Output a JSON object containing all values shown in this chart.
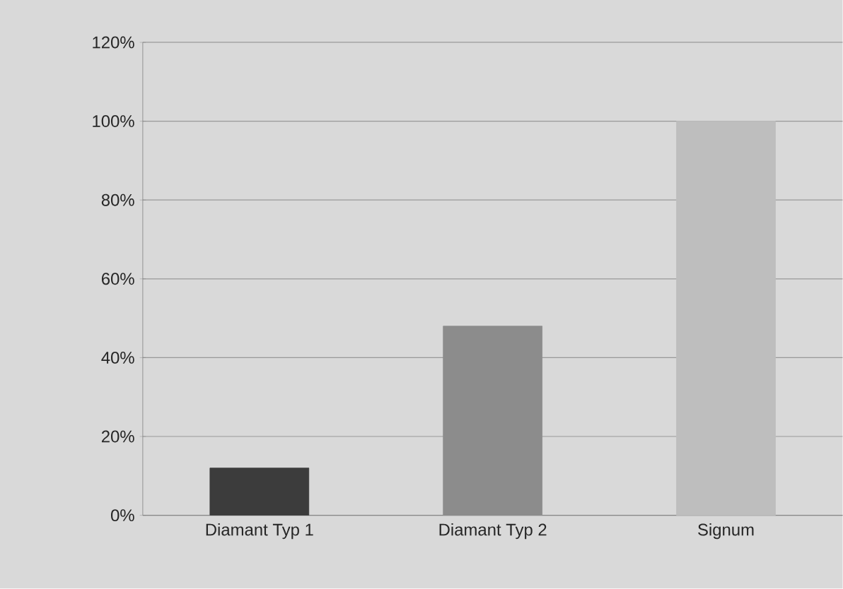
{
  "chart_data": {
    "type": "bar",
    "categories": [
      "Diamant Typ 1",
      "Diamant Typ 2",
      "Signum"
    ],
    "values": [
      12,
      48,
      100
    ],
    "colors": [
      "#3c3c3c",
      "#8c8c8c",
      "#bebebe"
    ],
    "ylim": [
      0,
      120
    ],
    "yticks": [
      {
        "value": 0,
        "label": "0%"
      },
      {
        "value": 20,
        "label": "20%"
      },
      {
        "value": 40,
        "label": "40%"
      },
      {
        "value": 60,
        "label": "60%"
      },
      {
        "value": 80,
        "label": "80%"
      },
      {
        "value": 100,
        "label": "100%"
      },
      {
        "value": 120,
        "label": "120%"
      }
    ],
    "grid": "y"
  }
}
